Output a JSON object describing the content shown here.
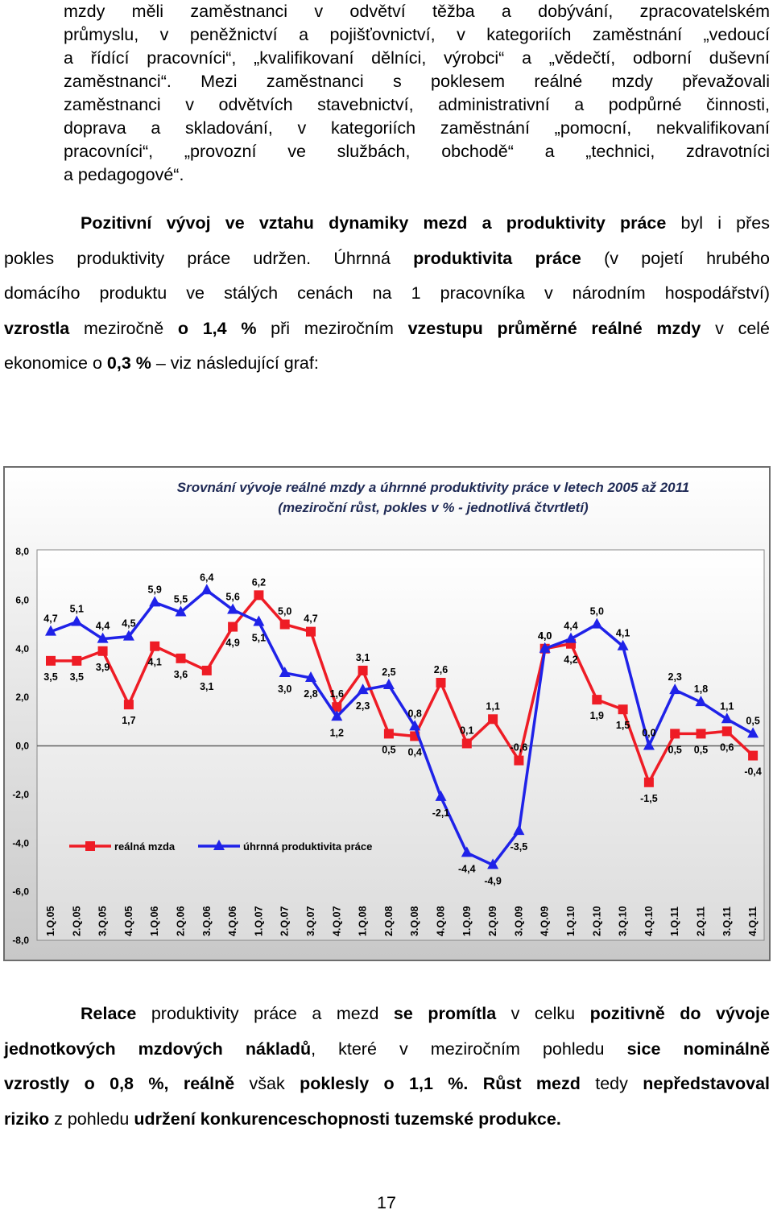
{
  "para1": [
    "mzdy měli zaměstnanci v odvětví těžba a dobývání, zpracovatelském",
    "průmyslu, v peněžnictví a pojišťovnictví, v kategoriích zaměstnání „vedoucí",
    "a řídící pracovníci“, „kvalifikovaní dělníci, výrobci“ a „vědečtí, odborní duševní",
    "zaměstnanci“. Mezi zaměstnanci s poklesem reálné mzdy převažovali",
    "zaměstnanci v odvětvích stavebnictví, administrativní a podpůrné činnosti,",
    "doprava a skladování, v kategoriích zaměstnání „pomocní, nekvalifikovaní",
    "pracovníci“, „provozní ve službách, obchodě“ a „technici, zdravotníci",
    "a pedagogové“."
  ],
  "para2": {
    "l1_b": "Pozitivní vývoj ve vztahu dynamiky mezd a produktivity práce",
    "l1_n": " byl i přes",
    "l2_n1": "pokles produktivity práce udržen. Úhrnná ",
    "l2_b": "produktivita práce",
    "l2_n2": " (v pojetí hrubého",
    "l3": "domácího produktu ve stálých cenách na 1 pracovníka v národním hospodářství)",
    "l4_b1": "vzrostla",
    "l4_n1": " meziročně ",
    "l4_b2": "o 1,4 %",
    "l4_n2": " při meziročním ",
    "l4_b3": "vzestupu průměrné reálné mzdy",
    "l4_n3": " v celé",
    "l5_n1": "ekonomice o ",
    "l5_b": "0,3 %",
    "l5_n2": " – viz následující graf:"
  },
  "para3": {
    "l1_b1": "Relace",
    "l1_n1": " produktivity práce a mezd ",
    "l1_b2": "se promítla",
    "l1_n2": " v celku ",
    "l1_b3": "pozitivně do vývoje",
    "l2_b1": "jednotkových mzdových nákladů",
    "l2_n1": ", které v meziročním pohledu ",
    "l2_b2": "sice nominálně",
    "l3_b1": "vzrostly o 0,8 %, reálně",
    "l3_n1": " však ",
    "l3_b2": "poklesly o 1,1 %. Růst mezd",
    "l3_n2": " tedy ",
    "l3_b3": "nepředstavoval",
    "l4_b1": "riziko",
    "l4_n1": " z pohledu ",
    "l4_b2": "udržení konkurenceschopnosti tuzemské produkce."
  },
  "page_number": "17",
  "colors": {
    "real_wage": "#ee1c25",
    "productivity": "#1f22e8",
    "axis_text": "#000000"
  },
  "chart_data": {
    "type": "line",
    "title": "Srovnání vývoje reálné mzdy a úhrnné produktivity práce v letech 2005 až 2011",
    "subtitle": "(meziroční růst, pokles v % - jednotlivá čtvrtletí)",
    "categories": [
      "1.Q.05",
      "2.Q.05",
      "3.Q.05",
      "4.Q.05",
      "1.Q.06",
      "2.Q.06",
      "3.Q.06",
      "4.Q.06",
      "1.Q.07",
      "2.Q.07",
      "3.Q.07",
      "4.Q.07",
      "1.Q.08",
      "2.Q.08",
      "3.Q.08",
      "4.Q.08",
      "1.Q.09",
      "2.Q.09",
      "3.Q.09",
      "4.Q.09",
      "1.Q.10",
      "2.Q.10",
      "3.Q.10",
      "4.Q.10",
      "1.Q.11",
      "2.Q.11",
      "3.Q.11",
      "4.Q.11"
    ],
    "y_ticks": [
      "8,0",
      "6,0",
      "4,0",
      "2,0",
      "0,0",
      "-2,0",
      "-4,0",
      "-6,0",
      "-8,0"
    ],
    "ylim": [
      -8,
      8
    ],
    "legend_position": "lower-left",
    "series": [
      {
        "name": "reálná mzda",
        "values": [
          3.5,
          3.5,
          3.9,
          1.7,
          4.1,
          3.6,
          3.1,
          4.9,
          6.2,
          5.0,
          4.7,
          1.6,
          3.1,
          0.5,
          0.4,
          2.6,
          0.1,
          1.1,
          -0.6,
          4.0,
          4.2,
          1.9,
          1.5,
          -1.5,
          0.5,
          0.5,
          0.6,
          -0.4
        ],
        "labels": [
          "3,5",
          "3,5",
          "3,9",
          "1,7",
          "4,1",
          "3,6",
          "3,1",
          "4,9",
          "6,2",
          "5,0",
          "4,7",
          "1,6",
          "3,1",
          "0,5",
          "0,4",
          "2,6",
          "0,1",
          "1,1",
          "-0,6",
          "4,0",
          "4,2",
          "1,9",
          "1,5",
          "-1,5",
          "0,5",
          "0,5",
          "0,6",
          "-0,4"
        ]
      },
      {
        "name": "úhrnná produktivita práce",
        "values": [
          4.7,
          5.1,
          4.4,
          4.5,
          5.9,
          5.5,
          6.4,
          5.6,
          5.1,
          3.0,
          2.8,
          1.2,
          2.3,
          2.5,
          0.8,
          -2.1,
          -4.4,
          -4.9,
          -3.5,
          4.0,
          4.4,
          5.0,
          4.1,
          0.0,
          2.3,
          1.8,
          1.1,
          0.5
        ],
        "labels": [
          "4,7",
          "5,1",
          "4,4",
          "4,5",
          "5,9",
          "5,5",
          "6,4",
          "5,6",
          "5,1",
          "3,0",
          "2,8",
          "1,2",
          "2,3",
          "2,5",
          "0,8",
          "-2,1",
          "-4,4",
          "-4,9",
          "-3,5",
          "4,0",
          "4,4",
          "5,0",
          "4,1",
          "0,0",
          "2,3",
          "1,8",
          "1,1",
          "0,5"
        ]
      }
    ]
  }
}
